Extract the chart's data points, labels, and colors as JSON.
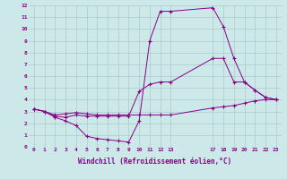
{
  "xlabel": "Windchill (Refroidissement éolien,°C)",
  "bg_color": "#cce8e8",
  "grid_color": "#aacccc",
  "line_color": "#880088",
  "xlim": [
    -0.5,
    23.5
  ],
  "ylim": [
    0,
    12
  ],
  "xticks": [
    0,
    1,
    2,
    3,
    4,
    5,
    6,
    7,
    8,
    9,
    10,
    11,
    12,
    13,
    17,
    18,
    19,
    20,
    21,
    22,
    23
  ],
  "yticks": [
    0,
    1,
    2,
    3,
    4,
    5,
    6,
    7,
    8,
    9,
    10,
    11,
    12
  ],
  "series": [
    {
      "x": [
        0,
        1,
        2,
        3,
        4,
        5,
        6,
        7,
        8,
        9,
        10,
        11,
        12,
        13,
        17,
        18,
        19,
        20,
        21,
        22,
        23
      ],
      "y": [
        3.2,
        3.0,
        2.7,
        2.8,
        2.9,
        2.8,
        2.7,
        2.7,
        2.7,
        2.7,
        2.7,
        2.7,
        2.7,
        2.7,
        3.3,
        3.4,
        3.5,
        3.7,
        3.9,
        4.0,
        4.0
      ]
    },
    {
      "x": [
        0,
        1,
        2,
        3,
        4,
        5,
        6,
        7,
        8,
        9,
        10,
        11,
        12,
        13,
        17,
        18,
        19,
        20,
        21,
        22,
        23
      ],
      "y": [
        3.2,
        3.0,
        2.5,
        2.2,
        1.8,
        0.9,
        0.7,
        0.6,
        0.5,
        0.4,
        2.2,
        9.0,
        11.5,
        11.5,
        11.8,
        10.2,
        7.5,
        5.5,
        4.8,
        4.2,
        4.0
      ]
    },
    {
      "x": [
        0,
        1,
        2,
        3,
        4,
        5,
        6,
        7,
        8,
        9,
        10,
        11,
        12,
        13,
        17,
        18,
        19,
        20,
        21,
        22,
        23
      ],
      "y": [
        3.2,
        3.0,
        2.6,
        2.5,
        2.7,
        2.6,
        2.6,
        2.6,
        2.6,
        2.6,
        4.7,
        5.3,
        5.5,
        5.5,
        7.5,
        7.5,
        5.5,
        5.5,
        4.8,
        4.2,
        4.0
      ]
    }
  ]
}
